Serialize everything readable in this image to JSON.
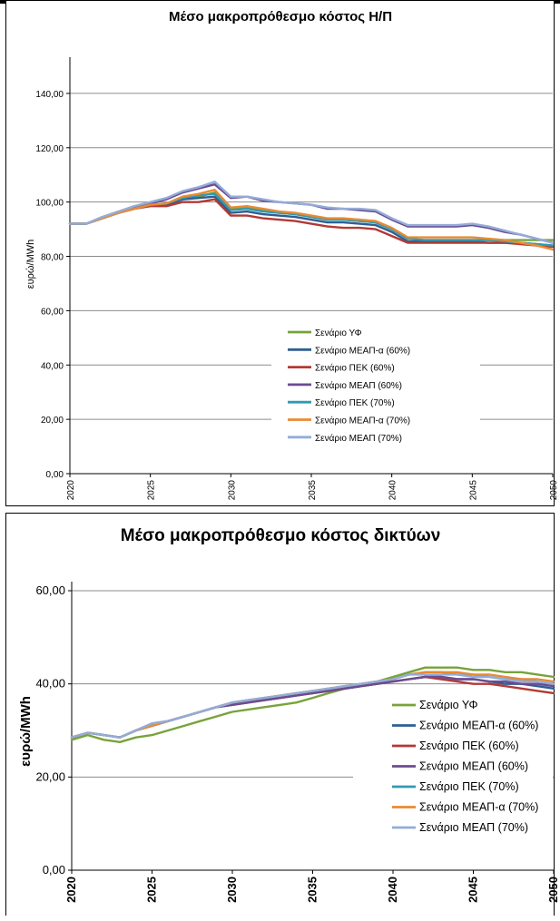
{
  "colors": {
    "Σενάριο ΥΦ": "#77a33b",
    "Σενάριο ΜΕΑΠ-α (60%)": "#2f5e91",
    "Σενάριο ΠΕΚ (60%)": "#b23a35",
    "Σενάριο ΜΕΑΠ (60%)": "#6b4c92",
    "Σενάριο ΠΕΚ (70%)": "#3399b0",
    "Σενάριο ΜΕΑΠ-α (70%)": "#ea8a33",
    "Σενάριο ΜΕΑΠ (70%)": "#93acd8"
  },
  "chart_data": [
    {
      "type": "line",
      "title": "Μέσο μακροπρόθεσμο κόστος Η/Π",
      "xlabel": "",
      "ylabel": "ευρώ/MWh",
      "ylim": [
        0,
        150
      ],
      "yticks": [
        "0,00",
        "20,00",
        "40,00",
        "60,00",
        "80,00",
        "100,00",
        "120,00",
        "140,00"
      ],
      "xticks": [
        "2020",
        "2025",
        "2030",
        "2035",
        "2040",
        "2045",
        "2050"
      ],
      "xlim": [
        2020,
        2050
      ],
      "legend": "center-right",
      "x": [
        2020,
        2021,
        2022,
        2023,
        2024,
        2025,
        2026,
        2027,
        2028,
        2029,
        2030,
        2031,
        2032,
        2033,
        2034,
        2035,
        2036,
        2037,
        2038,
        2039,
        2040,
        2041,
        2042,
        2043,
        2044,
        2045,
        2046,
        2047,
        2048,
        2049,
        2050
      ],
      "series": [
        {
          "name": "Σενάριο ΥΦ",
          "values": [
            92,
            92,
            94,
            96,
            97.5,
            99,
            99,
            101,
            102,
            103.5,
            97.5,
            98,
            97,
            96,
            95.5,
            94.5,
            93.5,
            93.5,
            93,
            92.5,
            90,
            86.5,
            86,
            86,
            86,
            86,
            86,
            86,
            86,
            86,
            86
          ]
        },
        {
          "name": "Σενάριο ΜΕΑΠ-α (60%)",
          "values": [
            92,
            92,
            94,
            96,
            97.5,
            99,
            99,
            101,
            101.5,
            102,
            96,
            96.5,
            95.5,
            95,
            94.5,
            93.5,
            92.5,
            92.5,
            92,
            91.5,
            89,
            85.5,
            85.5,
            85.5,
            85.5,
            85.5,
            85,
            85,
            85,
            84.5,
            84
          ]
        },
        {
          "name": "Σενάριο ΠΕΚ (60%)",
          "values": [
            92,
            92,
            94,
            96,
            97.5,
            98.5,
            98.5,
            100,
            100,
            101,
            95,
            95,
            94,
            93.5,
            93,
            92,
            91,
            90.5,
            90.5,
            90,
            87.5,
            85,
            85,
            85,
            85,
            85,
            85,
            85,
            84.5,
            84,
            83.5
          ]
        },
        {
          "name": "Σενάριο ΜΕΑΠ (60%)",
          "values": [
            92,
            92,
            94,
            96,
            98,
            99.5,
            101,
            103.5,
            105,
            106.5,
            101.5,
            102,
            100.5,
            100,
            99.5,
            99,
            97.5,
            97.5,
            97,
            96.5,
            93.5,
            91,
            91,
            91,
            91,
            91.5,
            90.5,
            89,
            88,
            86.5,
            85
          ]
        },
        {
          "name": "Σενάριο ΠΕΚ (70%)",
          "values": [
            92,
            92,
            94,
            96,
            97.5,
            99,
            99.5,
            101.5,
            102.5,
            103,
            97,
            97.5,
            96.5,
            96,
            95.5,
            94.5,
            93.5,
            93.5,
            93,
            92.5,
            90,
            86.5,
            86,
            86,
            86,
            86,
            86,
            85.5,
            85,
            84.5,
            84
          ]
        },
        {
          "name": "Σενάριο ΜΕΑΠ-α (70%)",
          "values": [
            92,
            92,
            94,
            96,
            97.5,
            99,
            99.5,
            102,
            103,
            104.5,
            98,
            98.5,
            97.5,
            96.5,
            96,
            95,
            94,
            94,
            93.5,
            93,
            90.5,
            87,
            87,
            87,
            87,
            87,
            86.5,
            86,
            85,
            84,
            82.5
          ]
        },
        {
          "name": "Σενάριο ΜΕΑΠ (70%)",
          "values": [
            92,
            92,
            94.5,
            96.5,
            98.5,
            100,
            101.5,
            104,
            105.5,
            107.5,
            102,
            102,
            101,
            100,
            99.5,
            99,
            98,
            97.5,
            97.5,
            97,
            94,
            91.5,
            91.5,
            91.5,
            91.5,
            92,
            91,
            89.5,
            88,
            86.5,
            85
          ]
        }
      ]
    },
    {
      "type": "line",
      "title": "Μέσο μακροπρόθεσμο κόστος δικτύων",
      "xlabel": "",
      "ylabel": "ευρώ/MWh",
      "ylim": [
        0,
        60
      ],
      "yticks": [
        "0,00",
        "20,00",
        "40,00",
        "60,00"
      ],
      "xticks": [
        "2020",
        "2025",
        "2030",
        "2035",
        "2040",
        "2045",
        "2050"
      ],
      "xlim": [
        2020,
        2050
      ],
      "legend": "center-right",
      "x": [
        2020,
        2021,
        2022,
        2023,
        2024,
        2025,
        2026,
        2027,
        2028,
        2029,
        2030,
        2031,
        2032,
        2033,
        2034,
        2035,
        2036,
        2037,
        2038,
        2039,
        2040,
        2041,
        2042,
        2043,
        2044,
        2045,
        2046,
        2047,
        2048,
        2049,
        2050
      ],
      "series": [
        {
          "name": "Σενάριο ΥΦ",
          "values": [
            28,
            29,
            28,
            27.5,
            28.5,
            29,
            30,
            31,
            32,
            33,
            34,
            34.5,
            35,
            35.5,
            36,
            37,
            38,
            39,
            39.5,
            40.5,
            41.5,
            42.5,
            43.5,
            43.5,
            43.5,
            43,
            43,
            42.5,
            42.5,
            42,
            41.5
          ]
        },
        {
          "name": "Σενάριο ΜΕΑΠ-α (60%)",
          "values": [
            28.5,
            29.5,
            29,
            28.5,
            30,
            31,
            32,
            33,
            34,
            35,
            35.5,
            36,
            36.5,
            37,
            37.5,
            38,
            38.5,
            39,
            39.5,
            40,
            40.5,
            41,
            41.5,
            41.5,
            41,
            41,
            40.5,
            40,
            40,
            39.5,
            39
          ]
        },
        {
          "name": "Σενάριο ΠΕΚ (60%)",
          "values": [
            28.5,
            29.5,
            29,
            28.5,
            30,
            31,
            32,
            33,
            34,
            35,
            35.5,
            36,
            36.5,
            37,
            37.5,
            38,
            38.5,
            39,
            39.5,
            40,
            40.5,
            41,
            41.5,
            41,
            40.5,
            40,
            40,
            39.5,
            39,
            38.5,
            38
          ]
        },
        {
          "name": "Σενάριο ΜΕΑΠ (60%)",
          "values": [
            28.5,
            29.5,
            29,
            28.5,
            30,
            31.5,
            32,
            33,
            34,
            35,
            35.5,
            36,
            36.5,
            37,
            37.5,
            38,
            38.5,
            39,
            39.5,
            40,
            40.5,
            41,
            41.5,
            41.5,
            41,
            41,
            40.5,
            40.5,
            40,
            40,
            39.5
          ]
        },
        {
          "name": "Σενάριο ΠΕΚ (70%)",
          "values": [
            28.5,
            29.5,
            29,
            28.5,
            30,
            31,
            32,
            33,
            34,
            35,
            36,
            36.5,
            37,
            37.5,
            38,
            38.5,
            39,
            39.5,
            40,
            40.5,
            41,
            42,
            42.5,
            42.5,
            42,
            42,
            41.5,
            41,
            41,
            40.5,
            40
          ]
        },
        {
          "name": "Σενάριο ΜΕΑΠ-α (70%)",
          "values": [
            28.5,
            29.5,
            29,
            28.5,
            30,
            31,
            32,
            33,
            34,
            35,
            36,
            36.5,
            37,
            37.5,
            38,
            38.5,
            39,
            39.5,
            40,
            40.5,
            41,
            42,
            42.5,
            42.5,
            42.5,
            42,
            42,
            41.5,
            41,
            41,
            40.5
          ]
        },
        {
          "name": "Σενάριο ΜΕΑΠ (70%)",
          "values": [
            28.5,
            29.5,
            29,
            28.5,
            30,
            31.5,
            32,
            33,
            34,
            35,
            36,
            36.5,
            37,
            37.5,
            38,
            38.5,
            39,
            39.5,
            40,
            40.5,
            41,
            42,
            42,
            42,
            42,
            41.5,
            41.5,
            41,
            40.5,
            40.5,
            40
          ]
        }
      ]
    }
  ]
}
